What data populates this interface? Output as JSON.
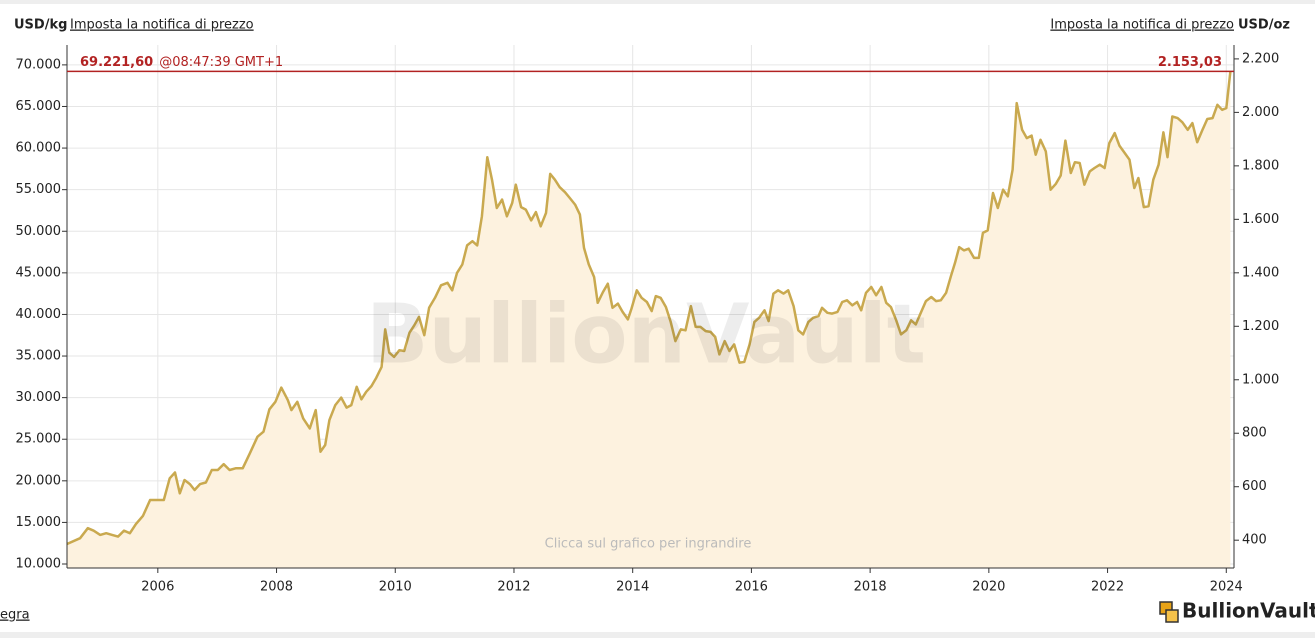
{
  "chart_data": {
    "type": "area",
    "unit_left": "USD/kg",
    "unit_right": "USD/oz",
    "alert_link_left": "Imposta la notifica di prezzo",
    "alert_link_right": "Imposta la notifica di prezzo",
    "current": {
      "value": 69221.6,
      "label": "69.221,60"
    },
    "current_time": "@08:47:39 GMT+1",
    "current_oz": {
      "value": 2153.03,
      "label": "2.153,03"
    },
    "watermark": "BullionVault",
    "hint": "Clicca sul grafico per ingrandire",
    "footer_link": "egra",
    "logo": "BullionVault",
    "color": "#c9a94f",
    "fill": "#fdf2df",
    "current_color": "#b22222",
    "grid": true,
    "xlim": [
      2004.47,
      2024.13
    ],
    "xticks": [
      2006,
      2008,
      2010,
      2012,
      2014,
      2016,
      2018,
      2020,
      2022,
      2024
    ],
    "ylim": [
      9520,
      72390
    ],
    "yticks": [
      {
        "value": 10000,
        "label": "10.000"
      },
      {
        "value": 15000,
        "label": "15.000"
      },
      {
        "value": 20000,
        "label": "20.000"
      },
      {
        "value": 25000,
        "label": "25.000"
      },
      {
        "value": 30000,
        "label": "30.000"
      },
      {
        "value": 35000,
        "label": "35.000"
      },
      {
        "value": 40000,
        "label": "40.000"
      },
      {
        "value": 45000,
        "label": "45.000"
      },
      {
        "value": 50000,
        "label": "50.000"
      },
      {
        "value": 55000,
        "label": "55.000"
      },
      {
        "value": 60000,
        "label": "60.000"
      },
      {
        "value": 65000,
        "label": "65.000"
      },
      {
        "value": 70000,
        "label": "70.000"
      }
    ],
    "y2lim": [
      296,
      2252
    ],
    "y2ticks": [
      400,
      600,
      800,
      {
        "value": 1000,
        "label": "1.000"
      },
      {
        "value": 1200,
        "label": "1.200"
      },
      {
        "value": 1400,
        "label": "1.400"
      },
      {
        "value": 1600,
        "label": "1.600"
      },
      {
        "value": 1800,
        "label": "1.800"
      },
      {
        "value": 2000,
        "label": "2.000"
      },
      {
        "value": 2200,
        "label": "2.200"
      }
    ],
    "x": [
      2004.47,
      2004.69,
      2004.82,
      2004.92,
      2005.03,
      2005.13,
      2005.23,
      2005.33,
      2005.43,
      2005.53,
      2005.63,
      2005.75,
      2005.87,
      2006.0,
      2006.1,
      2006.2,
      2006.29,
      2006.37,
      2006.45,
      2006.54,
      2006.62,
      2006.71,
      2006.81,
      2006.91,
      2007.01,
      2007.11,
      2007.21,
      2007.31,
      2007.43,
      2007.55,
      2007.68,
      2007.78,
      2007.88,
      2007.98,
      2008.08,
      2008.19,
      2008.25,
      2008.35,
      2008.45,
      2008.56,
      2008.66,
      2008.74,
      2008.82,
      2008.89,
      2008.99,
      2009.09,
      2009.18,
      2009.26,
      2009.35,
      2009.43,
      2009.51,
      2009.6,
      2009.68,
      2009.77,
      2009.83,
      2009.9,
      2009.98,
      2010.07,
      2010.15,
      2010.24,
      2010.32,
      2010.4,
      2010.49,
      2010.57,
      2010.67,
      2010.77,
      2010.88,
      2010.96,
      2011.04,
      2011.13,
      2011.21,
      2011.3,
      2011.38,
      2011.46,
      2011.55,
      2011.63,
      2011.71,
      2011.8,
      2011.88,
      2011.97,
      2012.03,
      2012.12,
      2012.2,
      2012.29,
      2012.37,
      2012.45,
      2012.54,
      2012.61,
      2012.69,
      2012.77,
      2012.86,
      2012.94,
      2013.03,
      2013.11,
      2013.18,
      2013.26,
      2013.35,
      2013.41,
      2013.5,
      2013.58,
      2013.66,
      2013.75,
      2013.83,
      2013.92,
      2013.98,
      2014.07,
      2014.15,
      2014.24,
      2014.32,
      2014.39,
      2014.47,
      2014.56,
      2014.64,
      2014.72,
      2014.81,
      2014.89,
      2014.98,
      2015.06,
      2015.14,
      2015.23,
      2015.31,
      2015.39,
      2015.46,
      2015.55,
      2015.63,
      2015.71,
      2015.8,
      2015.88,
      2015.97,
      2016.05,
      2016.13,
      2016.22,
      2016.29,
      2016.37,
      2016.45,
      2016.54,
      2016.62,
      2016.71,
      2016.79,
      2016.87,
      2016.96,
      2017.04,
      2017.13,
      2017.19,
      2017.28,
      2017.36,
      2017.45,
      2017.53,
      2017.61,
      2017.7,
      2017.78,
      2017.85,
      2017.93,
      2018.02,
      2018.1,
      2018.19,
      2018.27,
      2018.35,
      2018.44,
      2018.52,
      2018.61,
      2018.69,
      2018.77,
      2018.86,
      2018.94,
      2019.03,
      2019.11,
      2019.19,
      2019.28,
      2019.36,
      2019.43,
      2019.5,
      2019.58,
      2019.66,
      2019.75,
      2019.83,
      2019.9,
      2019.98,
      2020.07,
      2020.15,
      2020.24,
      2020.32,
      2020.4,
      2020.47,
      2020.56,
      2020.64,
      2020.72,
      2020.79,
      2020.87,
      2020.96,
      2021.04,
      2021.13,
      2021.21,
      2021.29,
      2021.38,
      2021.45,
      2021.53,
      2021.61,
      2021.7,
      2021.78,
      2021.87,
      2021.95,
      2022.03,
      2022.12,
      2022.2,
      2022.29,
      2022.37,
      2022.45,
      2022.52,
      2022.61,
      2022.69,
      2022.77,
      2022.86,
      2022.94,
      2023.01,
      2023.09,
      2023.18,
      2023.26,
      2023.35,
      2023.43,
      2023.51,
      2023.6,
      2023.68,
      2023.77,
      2023.85,
      2023.93,
      2024.0,
      2024.07
    ],
    "values": [
      12400,
      13100,
      14300,
      14000,
      13500,
      13700,
      13500,
      13300,
      14000,
      13700,
      14800,
      15800,
      17700,
      17700,
      17700,
      20300,
      21000,
      18500,
      20100,
      19600,
      18900,
      19600,
      19800,
      21300,
      21300,
      22000,
      21300,
      21500,
      21500,
      23300,
      25300,
      25900,
      28600,
      29500,
      31200,
      29700,
      28500,
      29500,
      27500,
      26300,
      28500,
      23500,
      24300,
      27300,
      29100,
      30000,
      28800,
      29100,
      31300,
      29800,
      30700,
      31400,
      32400,
      33700,
      38200,
      35400,
      34900,
      35700,
      35600,
      37800,
      38700,
      39700,
      37500,
      40800,
      42000,
      43500,
      43800,
      42900,
      45000,
      46000,
      48300,
      48800,
      48300,
      51800,
      58900,
      56200,
      52800,
      53800,
      51800,
      53400,
      55600,
      52900,
      52600,
      51300,
      52300,
      50600,
      52200,
      56900,
      56200,
      55300,
      54700,
      54000,
      53200,
      52000,
      48000,
      46000,
      44500,
      41400,
      42700,
      43700,
      40800,
      41300,
      40300,
      39400,
      40700,
      42900,
      42000,
      41500,
      40400,
      42200,
      42000,
      40900,
      39100,
      36800,
      38200,
      38100,
      41000,
      38500,
      38500,
      38000,
      37900,
      37300,
      35200,
      36800,
      35600,
      36400,
      34200,
      34300,
      36400,
      39100,
      39600,
      40500,
      39200,
      42500,
      42900,
      42500,
      42900,
      41000,
      38100,
      37600,
      39100,
      39600,
      39800,
      40800,
      40200,
      40100,
      40300,
      41500,
      41700,
      41100,
      41500,
      40500,
      42600,
      43300,
      42300,
      43300,
      41400,
      40900,
      39300,
      37600,
      38100,
      39300,
      38800,
      40300,
      41600,
      42100,
      41600,
      41700,
      42600,
      44600,
      46200,
      48100,
      47700,
      47900,
      46800,
      46800,
      49800,
      50100,
      54600,
      52800,
      55000,
      54200,
      57400,
      65400,
      62200,
      61200,
      61500,
      59200,
      61000,
      59600,
      55000,
      55700,
      56700,
      60900,
      57000,
      58300,
      58200,
      55600,
      57200,
      57600,
      58000,
      57600,
      60600,
      61800,
      60300,
      59400,
      58600,
      55200,
      56400,
      52900,
      53000,
      56200,
      58000,
      61900,
      58900,
      63800,
      63600,
      63100,
      62200,
      63000,
      60700,
      62200,
      63500,
      63600,
      65200,
      64600,
      64800,
      69221.6
    ]
  }
}
